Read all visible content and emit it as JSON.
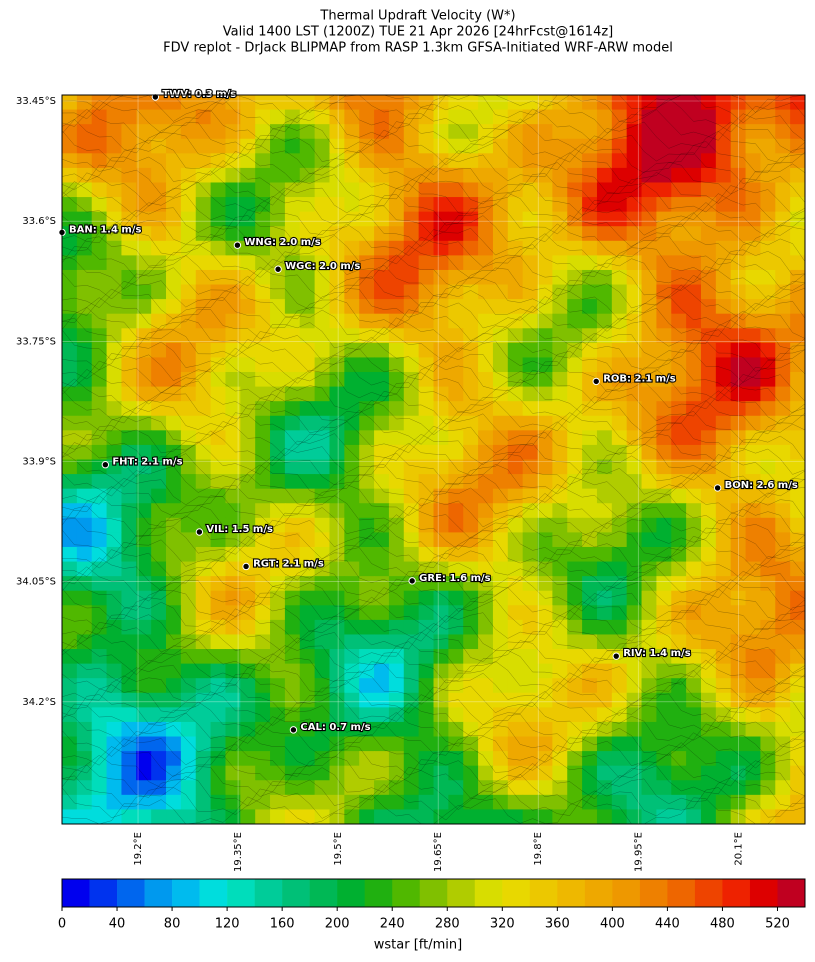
{
  "title": [
    "Thermal Updraft Velocity (W*)",
    "Valid 1400 LST (1200Z) TUE 21 Apr 2026 [24hrFcst@1614z]",
    "FDV replot - DrJack BLIPMAP from RASP 1.3km GFSA-Initiated WRF-ARW model"
  ],
  "map": {
    "xlim": [
      19.086,
      20.2
    ],
    "ylim": [
      -34.3525,
      -33.4425
    ],
    "xticks": [
      {
        "value": 19.2,
        "label": "19.2°E"
      },
      {
        "value": 19.35,
        "label": "19.35°E"
      },
      {
        "value": 19.5,
        "label": "19.5°E"
      },
      {
        "value": 19.65,
        "label": "19.65°E"
      },
      {
        "value": 19.8,
        "label": "19.8°E"
      },
      {
        "value": 19.95,
        "label": "19.95°E"
      },
      {
        "value": 20.1,
        "label": "20.1°E"
      }
    ],
    "yticks": [
      {
        "value": -33.45,
        "label": "33.45°S"
      },
      {
        "value": -33.6,
        "label": "33.6°S"
      },
      {
        "value": -33.75,
        "label": "33.75°S"
      },
      {
        "value": -33.9,
        "label": "33.9°S"
      },
      {
        "value": -34.05,
        "label": "34.05°S"
      },
      {
        "value": -34.2,
        "label": "34.2°S"
      }
    ],
    "stations": [
      {
        "label": "TWV: 0.3 m/s",
        "lon": 19.226,
        "lat": -33.445
      },
      {
        "label": "BAN: 1.4 m/s",
        "lon": 19.086,
        "lat": -33.614
      },
      {
        "label": "WNG: 2.0 m/s",
        "lon": 19.349,
        "lat": -33.63
      },
      {
        "label": "WGC: 2.0 m/s",
        "lon": 19.41,
        "lat": -33.66
      },
      {
        "label": "ROB: 2.1 m/s",
        "lon": 19.887,
        "lat": -33.8
      },
      {
        "label": "FHT: 2.1 m/s",
        "lon": 19.151,
        "lat": -33.904
      },
      {
        "label": "BON: 2.6 m/s",
        "lon": 20.069,
        "lat": -33.933
      },
      {
        "label": "VIL: 1.5 m/s",
        "lon": 19.292,
        "lat": -33.988
      },
      {
        "label": "RGT: 2.1 m/s",
        "lon": 19.362,
        "lat": -34.031
      },
      {
        "label": "GRE: 1.6 m/s",
        "lon": 19.611,
        "lat": -34.049
      },
      {
        "label": "RIV: 1.4 m/s",
        "lon": 19.917,
        "lat": -34.143
      },
      {
        "label": "CAL: 0.7 m/s",
        "lon": 19.433,
        "lat": -34.235
      }
    ]
  },
  "colorbar": {
    "label": "wstar [ft/min]",
    "clim": [
      0,
      540
    ],
    "ticks": [
      0,
      40,
      80,
      120,
      160,
      200,
      240,
      280,
      320,
      360,
      400,
      440,
      480,
      520
    ],
    "colors": [
      "#0000ee",
      "#0033ee",
      "#0066ee",
      "#0099ee",
      "#00bbee",
      "#00dddd",
      "#00ddbb",
      "#00cc99",
      "#00c077",
      "#00b855",
      "#00b030",
      "#20b010",
      "#50b800",
      "#80c000",
      "#b0cc00",
      "#d8dd00",
      "#e8d800",
      "#ecc800",
      "#eeb800",
      "#eea800",
      "#ee9800",
      "#ee8000",
      "#ee6600",
      "#ee4400",
      "#ee2200",
      "#dd0000",
      "#c00020"
    ]
  }
}
